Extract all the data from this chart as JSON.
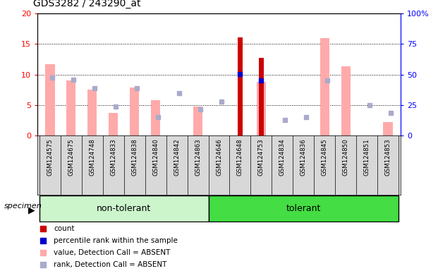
{
  "title": "GDS3282 / 243290_at",
  "samples": [
    "GSM124575",
    "GSM124675",
    "GSM124748",
    "GSM124833",
    "GSM124838",
    "GSM124840",
    "GSM124842",
    "GSM124863",
    "GSM124646",
    "GSM124648",
    "GSM124753",
    "GSM124834",
    "GSM124836",
    "GSM124845",
    "GSM124850",
    "GSM124851",
    "GSM124853"
  ],
  "n_non_tolerant": 8,
  "value_absent": [
    11.7,
    9.0,
    7.5,
    3.7,
    7.9,
    5.8,
    null,
    4.8,
    null,
    null,
    8.8,
    null,
    null,
    16.0,
    11.3,
    null,
    2.2
  ],
  "rank_absent_left": [
    9.5,
    9.2,
    7.8,
    4.7,
    7.8,
    3.0,
    6.9,
    4.3,
    5.6,
    null,
    null,
    2.5,
    3.0,
    9.0,
    null,
    5.0,
    3.7
  ],
  "count_present": [
    null,
    null,
    null,
    null,
    null,
    null,
    null,
    null,
    null,
    16.1,
    12.7,
    null,
    null,
    null,
    null,
    null,
    null
  ],
  "rank_present_left": [
    null,
    null,
    null,
    null,
    null,
    null,
    null,
    null,
    null,
    10.1,
    9.0,
    null,
    null,
    null,
    null,
    null,
    null
  ],
  "ylim_left": [
    0,
    20
  ],
  "ylim_right": [
    0,
    100
  ],
  "yticks_left": [
    0,
    5,
    10,
    15,
    20
  ],
  "yticks_right": [
    0,
    25,
    50,
    75,
    100
  ],
  "yticklabels_right": [
    "0",
    "25",
    "50",
    "75",
    "100%"
  ],
  "color_count": "#cc0000",
  "color_rank_present": "#0000cc",
  "color_value_absent": "#ffaaaa",
  "color_rank_absent": "#aaaacc",
  "color_bg_plot": "#ffffff",
  "color_bg_xtick": "#d8d8d8",
  "color_non_tolerant": "#ccf5cc",
  "color_tolerant": "#44dd44",
  "title_fontsize": 10,
  "tick_fontsize": 7,
  "group_label_fontsize": 9,
  "legend_items": [
    [
      "#cc0000",
      "count"
    ],
    [
      "#0000cc",
      "percentile rank within the sample"
    ],
    [
      "#ffaaaa",
      "value, Detection Call = ABSENT"
    ],
    [
      "#aaaacc",
      "rank, Detection Call = ABSENT"
    ]
  ]
}
